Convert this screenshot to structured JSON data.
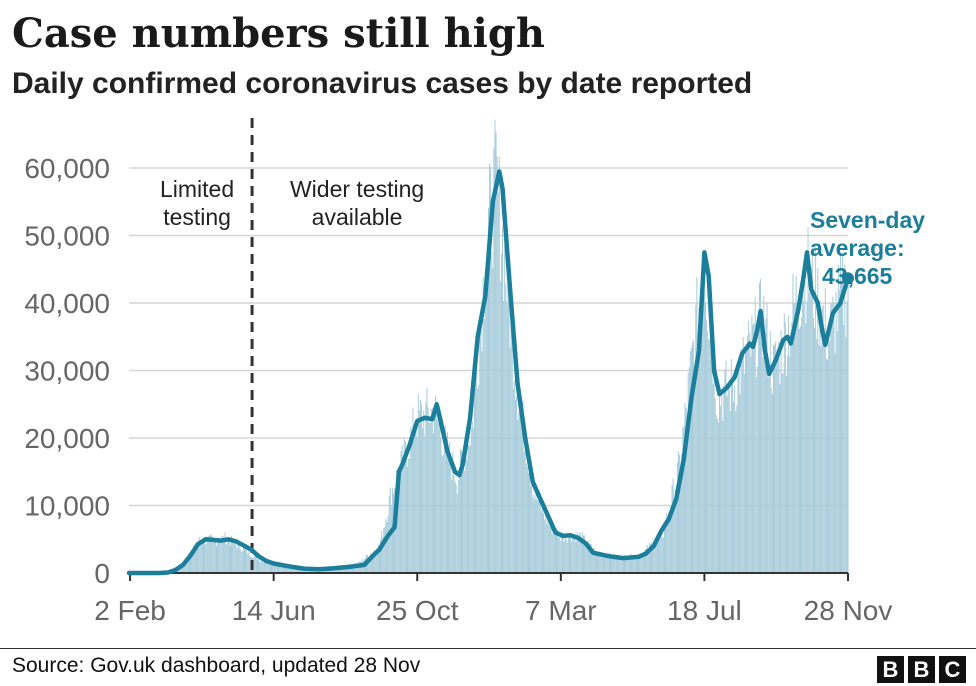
{
  "title": "Case numbers still high",
  "subtitle": "Daily confirmed coronavirus cases by date reported",
  "source": "Source: Gov.uk dashboard, updated 28 Nov",
  "logo_letters": [
    "B",
    "B",
    "C"
  ],
  "colors": {
    "line": "#1b7f9c",
    "bars": "#a8ccdb",
    "grid": "#d5d5d5",
    "axis_text": "#666666",
    "annotation": "#1b7f9c"
  },
  "chart_data": {
    "type": "line",
    "x_axis": {
      "min": "2020-02-01",
      "max": "2021-11-28"
    },
    "ylim": [
      0,
      60000
    ],
    "y_ticks": [
      {
        "value": 0,
        "label": "0"
      },
      {
        "value": 10000,
        "label": "10,000"
      },
      {
        "value": 20000,
        "label": "20,000"
      },
      {
        "value": 30000,
        "label": "30,000"
      },
      {
        "value": 40000,
        "label": "40,000"
      },
      {
        "value": 50000,
        "label": "50,000"
      },
      {
        "value": 60000,
        "label": "60,000"
      }
    ],
    "x_ticks": [
      {
        "date": "2020-02-02",
        "label": "2 Feb"
      },
      {
        "date": "2020-06-14",
        "label": "14 Jun"
      },
      {
        "date": "2020-10-25",
        "label": "25 Oct"
      },
      {
        "date": "2021-03-07",
        "label": "7 Mar"
      },
      {
        "date": "2021-07-18",
        "label": "18 Jul"
      },
      {
        "date": "2021-11-28",
        "label": "28 Nov"
      }
    ],
    "divider": {
      "date": "2020-05-25",
      "label_left": [
        "Limited",
        "testing"
      ],
      "label_right": [
        "Wider testing",
        "available"
      ]
    },
    "end_label": [
      "Seven-day",
      "average:",
      "43,665"
    ],
    "series": [
      {
        "kind": "bars",
        "points": [
          [
            "2020-02-01",
            0
          ],
          [
            "2020-03-01",
            0
          ],
          [
            "2020-03-10",
            200
          ],
          [
            "2020-03-20",
            700
          ],
          [
            "2020-04-01",
            3500
          ],
          [
            "2020-04-07",
            5000
          ],
          [
            "2020-04-20",
            4800
          ],
          [
            "2020-05-01",
            5200
          ],
          [
            "2020-05-15",
            3800
          ],
          [
            "2020-06-01",
            2000
          ],
          [
            "2020-06-14",
            1300
          ],
          [
            "2020-07-01",
            800
          ],
          [
            "2020-07-20",
            500
          ],
          [
            "2020-08-10",
            900
          ],
          [
            "2020-09-01",
            1500
          ],
          [
            "2020-09-20",
            4000
          ],
          [
            "2020-10-01",
            12000
          ],
          [
            "2020-10-15",
            18000
          ],
          [
            "2020-10-25",
            23000
          ],
          [
            "2020-11-10",
            24000
          ],
          [
            "2020-11-20",
            19000
          ],
          [
            "2020-12-01",
            14000
          ],
          [
            "2020-12-15",
            22000
          ],
          [
            "2020-12-29",
            50000
          ],
          [
            "2021-01-06",
            58000
          ],
          [
            "2021-01-15",
            45000
          ],
          [
            "2021-01-25",
            28000
          ],
          [
            "2021-02-10",
            12000
          ],
          [
            "2021-02-25",
            7000
          ],
          [
            "2021-03-07",
            5500
          ],
          [
            "2021-03-25",
            5500
          ],
          [
            "2021-04-10",
            2800
          ],
          [
            "2021-05-01",
            2300
          ],
          [
            "2021-05-20",
            2600
          ],
          [
            "2021-06-10",
            6000
          ],
          [
            "2021-06-25",
            16000
          ],
          [
            "2021-07-10",
            36000
          ],
          [
            "2021-07-18",
            46000
          ],
          [
            "2021-07-30",
            26000
          ],
          [
            "2021-08-15",
            28000
          ],
          [
            "2021-09-01",
            34000
          ],
          [
            "2021-09-10",
            38000
          ],
          [
            "2021-09-20",
            30000
          ],
          [
            "2021-10-01",
            35000
          ],
          [
            "2021-10-20",
            45000
          ],
          [
            "2021-11-01",
            40000
          ],
          [
            "2021-11-10",
            35000
          ],
          [
            "2021-11-20",
            40000
          ],
          [
            "2021-11-28",
            43000
          ]
        ]
      },
      {
        "kind": "line",
        "name": "Seven-day average",
        "points": [
          [
            "2020-02-01",
            0
          ],
          [
            "2020-02-29",
            0
          ],
          [
            "2020-03-08",
            80
          ],
          [
            "2020-03-15",
            450
          ],
          [
            "2020-03-22",
            1200
          ],
          [
            "2020-03-29",
            2600
          ],
          [
            "2020-04-05",
            4300
          ],
          [
            "2020-04-12",
            5000
          ],
          [
            "2020-04-19",
            4900
          ],
          [
            "2020-04-26",
            4800
          ],
          [
            "2020-05-03",
            5000
          ],
          [
            "2020-05-10",
            4700
          ],
          [
            "2020-05-17",
            4100
          ],
          [
            "2020-05-24",
            3500
          ],
          [
            "2020-05-31",
            2500
          ],
          [
            "2020-06-07",
            1800
          ],
          [
            "2020-06-14",
            1400
          ],
          [
            "2020-06-28",
            1000
          ],
          [
            "2020-07-12",
            650
          ],
          [
            "2020-07-26",
            550
          ],
          [
            "2020-08-09",
            700
          ],
          [
            "2020-08-23",
            900
          ],
          [
            "2020-09-06",
            1200
          ],
          [
            "2020-09-13",
            2400
          ],
          [
            "2020-09-20",
            3500
          ],
          [
            "2020-09-27",
            5300
          ],
          [
            "2020-10-04",
            6800
          ],
          [
            "2020-10-08",
            15000
          ],
          [
            "2020-10-11",
            16000
          ],
          [
            "2020-10-18",
            19000
          ],
          [
            "2020-10-25",
            22500
          ],
          [
            "2020-11-01",
            23000
          ],
          [
            "2020-11-08",
            22800
          ],
          [
            "2020-11-12",
            25000
          ],
          [
            "2020-11-15",
            23000
          ],
          [
            "2020-11-22",
            18000
          ],
          [
            "2020-11-29",
            15000
          ],
          [
            "2020-12-03",
            14500
          ],
          [
            "2020-12-06",
            16000
          ],
          [
            "2020-12-13",
            23000
          ],
          [
            "2020-12-20",
            35000
          ],
          [
            "2020-12-27",
            41000
          ],
          [
            "2021-01-03",
            55000
          ],
          [
            "2021-01-09",
            59500
          ],
          [
            "2021-01-12",
            57000
          ],
          [
            "2021-01-19",
            42000
          ],
          [
            "2021-01-26",
            28000
          ],
          [
            "2021-02-02",
            20000
          ],
          [
            "2021-02-09",
            13500
          ],
          [
            "2021-02-16",
            11000
          ],
          [
            "2021-02-23",
            8500
          ],
          [
            "2021-03-02",
            6000
          ],
          [
            "2021-03-09",
            5500
          ],
          [
            "2021-03-16",
            5600
          ],
          [
            "2021-03-23",
            5200
          ],
          [
            "2021-03-30",
            4400
          ],
          [
            "2021-04-06",
            3000
          ],
          [
            "2021-04-20",
            2500
          ],
          [
            "2021-05-04",
            2200
          ],
          [
            "2021-05-18",
            2400
          ],
          [
            "2021-05-25",
            2900
          ],
          [
            "2021-06-01",
            4000
          ],
          [
            "2021-06-08",
            6200
          ],
          [
            "2021-06-15",
            8000
          ],
          [
            "2021-06-22",
            11000
          ],
          [
            "2021-06-29",
            17000
          ],
          [
            "2021-07-06",
            26000
          ],
          [
            "2021-07-13",
            33000
          ],
          [
            "2021-07-18",
            47500
          ],
          [
            "2021-07-22",
            44000
          ],
          [
            "2021-07-27",
            30000
          ],
          [
            "2021-08-01",
            26500
          ],
          [
            "2021-08-08",
            27500
          ],
          [
            "2021-08-15",
            29000
          ],
          [
            "2021-08-22",
            32500
          ],
          [
            "2021-08-29",
            34000
          ],
          [
            "2021-09-01",
            33500
          ],
          [
            "2021-09-05",
            36000
          ],
          [
            "2021-09-08",
            38800
          ],
          [
            "2021-09-12",
            33000
          ],
          [
            "2021-09-16",
            29500
          ],
          [
            "2021-09-22",
            31500
          ],
          [
            "2021-09-29",
            34500
          ],
          [
            "2021-10-03",
            35000
          ],
          [
            "2021-10-06",
            34000
          ],
          [
            "2021-10-13",
            39000
          ],
          [
            "2021-10-18",
            44000
          ],
          [
            "2021-10-21",
            47500
          ],
          [
            "2021-10-25",
            42000
          ],
          [
            "2021-10-31",
            40000
          ],
          [
            "2021-11-04",
            36000
          ],
          [
            "2021-11-07",
            33800
          ],
          [
            "2021-11-14",
            38500
          ],
          [
            "2021-11-21",
            40000
          ],
          [
            "2021-11-28",
            43665
          ]
        ]
      }
    ]
  }
}
